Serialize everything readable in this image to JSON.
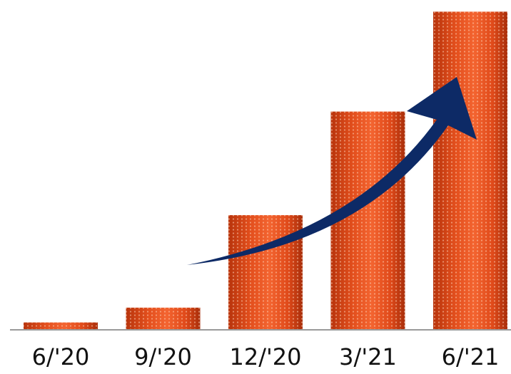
{
  "chart_data": {
    "type": "bar",
    "categories": [
      "6/'20",
      "9/'20",
      "12/'20",
      "3/'21",
      "6/'21"
    ],
    "values": [
      2,
      6,
      31,
      59,
      86
    ],
    "ylim": [
      0,
      88
    ],
    "grid": false,
    "legend": "none",
    "bar_color": "#e8501e",
    "bar_dark_color": "#a8300c",
    "trend_arrow_color": "#0d2a66",
    "baseline_color": "#9a9a9a"
  }
}
